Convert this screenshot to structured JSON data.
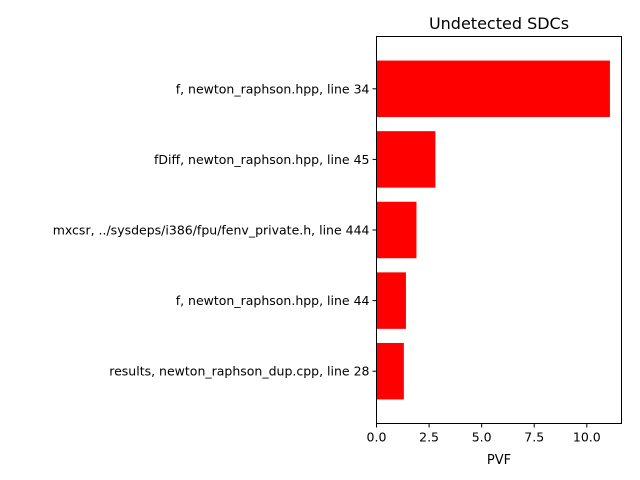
{
  "chart_data": {
    "type": "bar",
    "orientation": "horizontal",
    "title": "Undetected SDCs",
    "xlabel": "PVF",
    "ylabel": "",
    "categories": [
      "f, newton_raphson.hpp, line 34",
      "fDiff, newton_raphson.hpp, line 45",
      "mxcsr, ../sysdeps/i386/fpu/fenv_private.h, line 444",
      "f, newton_raphson.hpp, line 44",
      "results, newton_raphson_dup.cpp, line 28"
    ],
    "values": [
      11.1,
      2.8,
      1.9,
      1.4,
      1.3
    ],
    "xlim": [
      0,
      11.65
    ],
    "xticks": [
      "0.0",
      "2.5",
      "5.0",
      "7.5",
      "10.0"
    ],
    "bar_color": "#ff0000",
    "grid": false
  }
}
